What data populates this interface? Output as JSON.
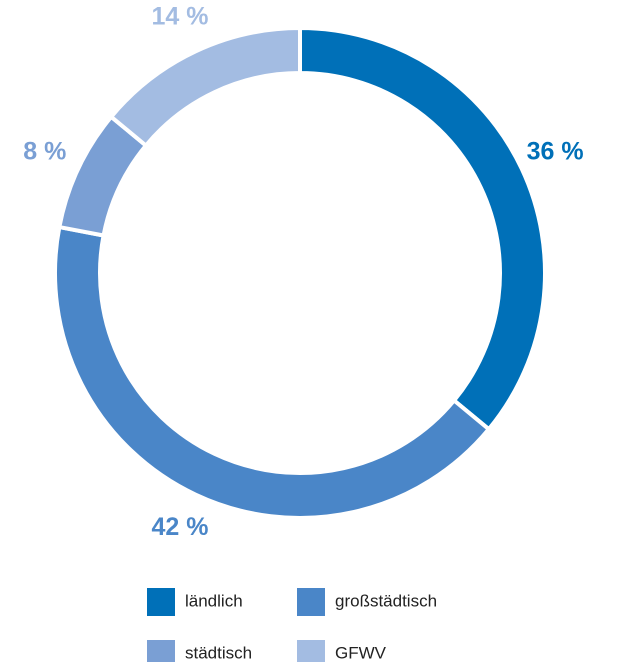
{
  "chart_data": {
    "type": "donut",
    "categories": [
      "ländlich",
      "großstädtisch",
      "städtisch",
      "GFWV"
    ],
    "values": [
      36,
      42,
      8,
      14
    ],
    "value_labels": [
      "36 %",
      "42 %",
      "8 %",
      "14 %"
    ],
    "colors": [
      "#0070b8",
      "#4a86c8",
      "#7a9fd4",
      "#a3bce2"
    ]
  }
}
